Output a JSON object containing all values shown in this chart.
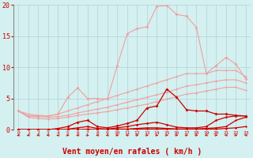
{
  "background_color": "#d4f0f0",
  "grid_color": "#aacccc",
  "xlabel": "Vent moyen/en rafales ( km/h )",
  "xlabel_color": "#cc0000",
  "xlabel_fontsize": 7,
  "xtick_color": "#cc0000",
  "ytick_color": "#cc0000",
  "x": [
    0,
    1,
    2,
    3,
    4,
    5,
    6,
    7,
    8,
    9,
    10,
    11,
    12,
    13,
    14,
    15,
    16,
    17,
    18,
    19,
    20,
    21,
    22,
    23
  ],
  "line1_light": [
    3.0,
    2.2,
    2.2,
    2.2,
    2.5,
    5.2,
    6.7,
    5.0,
    5.0,
    4.9,
    10.3,
    15.4,
    16.2,
    16.5,
    19.8,
    19.9,
    18.5,
    18.2,
    16.4,
    9.0,
    10.3,
    11.6,
    10.5,
    8.1
  ],
  "line2_light": [
    3.0,
    2.5,
    2.3,
    2.2,
    2.5,
    3.0,
    3.5,
    4.0,
    4.5,
    5.0,
    5.5,
    6.0,
    6.5,
    7.0,
    7.5,
    8.0,
    8.5,
    9.0,
    9.0,
    9.0,
    9.5,
    9.5,
    9.5,
    8.5
  ],
  "line3_light": [
    3.0,
    2.2,
    2.1,
    2.0,
    2.1,
    2.3,
    2.7,
    3.0,
    3.3,
    3.6,
    4.0,
    4.4,
    4.8,
    5.2,
    5.6,
    6.0,
    6.5,
    7.0,
    7.2,
    7.5,
    7.8,
    8.0,
    8.0,
    7.5
  ],
  "line4_light": [
    3.0,
    2.0,
    1.8,
    1.7,
    1.8,
    2.0,
    2.3,
    2.5,
    2.7,
    2.9,
    3.2,
    3.5,
    3.8,
    4.1,
    4.5,
    4.9,
    5.3,
    5.7,
    5.9,
    6.2,
    6.5,
    6.8,
    6.8,
    6.3
  ],
  "line5_dark": [
    0.0,
    0.0,
    0.0,
    0.0,
    0.2,
    0.5,
    1.2,
    1.5,
    0.5,
    0.3,
    0.6,
    1.0,
    1.5,
    3.5,
    3.8,
    6.5,
    5.2,
    3.2,
    3.0,
    3.0,
    2.5,
    2.5,
    2.3,
    2.2
  ],
  "line6_dark": [
    0.0,
    0.0,
    0.0,
    0.0,
    0.0,
    0.1,
    0.3,
    0.5,
    0.2,
    0.1,
    0.3,
    0.5,
    0.8,
    1.0,
    1.2,
    0.8,
    0.4,
    0.3,
    0.3,
    0.5,
    1.5,
    2.0,
    2.2,
    2.2
  ],
  "line7_dark": [
    0.0,
    0.0,
    0.0,
    0.0,
    0.0,
    0.0,
    0.0,
    0.1,
    0.0,
    0.0,
    0.1,
    0.1,
    0.2,
    0.3,
    0.3,
    0.2,
    0.1,
    0.1,
    0.1,
    0.2,
    0.3,
    0.5,
    1.5,
    2.0
  ],
  "line8_dark": [
    0.0,
    0.0,
    0.0,
    0.0,
    0.0,
    0.0,
    0.0,
    0.0,
    0.0,
    0.0,
    0.0,
    0.0,
    0.1,
    0.1,
    0.1,
    0.1,
    0.1,
    0.1,
    0.1,
    0.1,
    0.1,
    0.2,
    0.3,
    0.5
  ],
  "color_light": "#f0a0a0",
  "color_dark": "#cc0000",
  "ylim": [
    0,
    20
  ],
  "yticks": [
    0,
    5,
    10,
    15,
    20
  ],
  "arrows": [
    [
      0,
      "left"
    ],
    [
      1,
      "left"
    ],
    [
      2,
      "left"
    ],
    [
      3,
      "left"
    ],
    [
      4,
      "left"
    ],
    [
      5,
      "right"
    ],
    [
      6,
      "left"
    ],
    [
      7,
      "right"
    ],
    [
      8,
      "left"
    ],
    [
      9,
      "left"
    ],
    [
      10,
      "right"
    ],
    [
      11,
      "left"
    ],
    [
      12,
      "right"
    ],
    [
      13,
      "right"
    ],
    [
      14,
      "right"
    ],
    [
      15,
      "right"
    ],
    [
      16,
      "right"
    ],
    [
      17,
      "right"
    ],
    [
      18,
      "right"
    ],
    [
      19,
      "left"
    ],
    [
      20,
      "right"
    ],
    [
      21,
      "left"
    ],
    [
      22,
      "right"
    ],
    [
      23,
      "left"
    ]
  ]
}
